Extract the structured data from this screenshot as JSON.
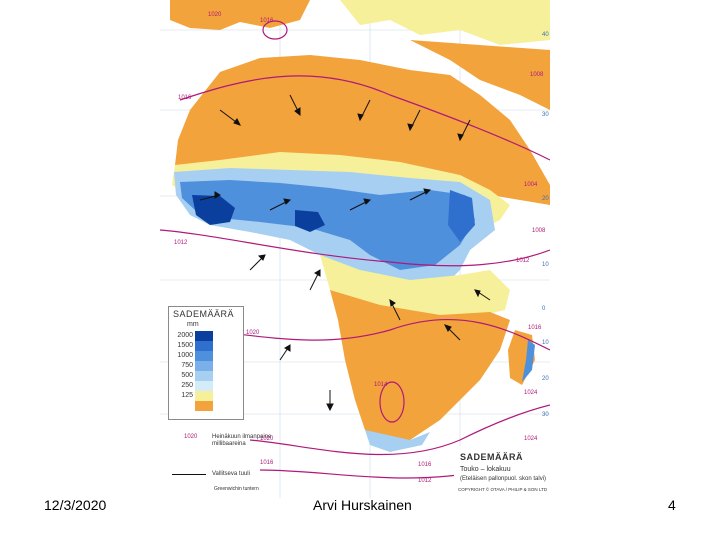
{
  "footer": {
    "date": "12/3/2020",
    "author": "Arvi Hurskainen",
    "page_number": "4"
  },
  "map": {
    "title": "SADEMÄÄRÄ",
    "subtitle": "Touko – lokakuu",
    "subtitle2": "(Eteläisen pallonpuol. skon talvi)",
    "copyright": "COPYRIGHT © OTAVA / PHILIP & SON LTD",
    "legend": {
      "title": "SADEMÄÄRÄ",
      "unit": "mm",
      "levels": [
        {
          "label": "2000",
          "color": "#0b3f9e"
        },
        {
          "label": "1500",
          "color": "#2f6fce"
        },
        {
          "label": "1000",
          "color": "#4f90dc"
        },
        {
          "label": "750",
          "color": "#79b0ea"
        },
        {
          "label": "500",
          "color": "#a6cff2"
        },
        {
          "label": "250",
          "color": "#d4ecf8"
        },
        {
          "label": "125",
          "color": "#f6f09a"
        },
        {
          "label": "",
          "color": "#f3a33b"
        }
      ]
    },
    "key": {
      "isobar_value": "1020",
      "isobar_text": "Heinäkuun ilmanpaine millibaareina",
      "wind_text": "Vallitseva tuuli",
      "greenwich": "Greenwichin tuntern"
    },
    "isobar_labels": [
      "1020",
      "1016",
      "1016",
      "1012",
      "1008",
      "1004",
      "1008",
      "1012",
      "1016",
      "1020",
      "1024",
      "1024",
      "1020",
      "1016",
      "1012",
      "1014",
      "1016"
    ],
    "lat_labels": [
      "40",
      "30",
      "20",
      "10",
      "0",
      "10",
      "20",
      "30"
    ],
    "colors": {
      "dry": "#f3a33b",
      "semi_dry": "#f6f09a",
      "ocean": "#ffffff",
      "isobar": "#b0197a",
      "arrow": "#111111"
    }
  }
}
